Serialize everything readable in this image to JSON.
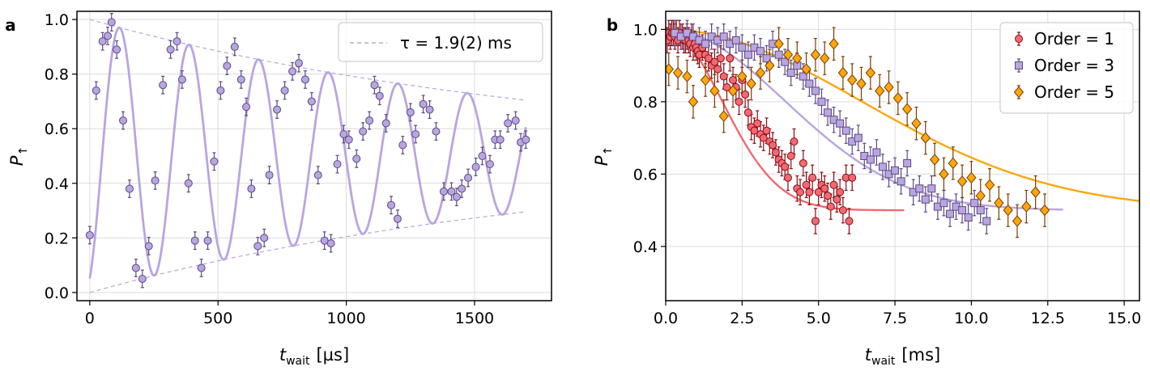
{
  "colors": {
    "purple": "#b9a5df",
    "purple_edge": "#5b4a86",
    "red": "#f06a72",
    "red_edge": "#8b0a14",
    "orange": "#fba70e",
    "orange_edge": "#7a3d00",
    "grid": "#dcdcdc"
  },
  "chart_data": [
    {
      "type": "scatter",
      "panel_label": "a",
      "xlabel": {
        "main": "t",
        "sub": "wait",
        "unit": "[µs]"
      },
      "ylabel": {
        "main": "P",
        "sub": "↑"
      },
      "xlim": [
        -50,
        1800
      ],
      "ylim": [
        -0.03,
        1.03
      ],
      "xticks": [
        0,
        500,
        1000,
        1500
      ],
      "yticks": [
        0.0,
        0.2,
        0.4,
        0.6,
        0.8,
        1.0
      ],
      "xtick_labels": [
        "0",
        "500",
        "1000",
        "1500"
      ],
      "ytick_labels": [
        "0.0",
        "0.2",
        "0.4",
        "0.6",
        "0.8",
        "1.0"
      ],
      "grid": true,
      "legend": {
        "position": "top-right",
        "entries": [
          {
            "label": "τ = 1.9(2) ms",
            "style": "dashed"
          }
        ]
      },
      "fit": {
        "tau_us": 1900,
        "omega_rad_per_us": 0.02315,
        "phase": 3.6,
        "duration_us": 1700
      },
      "series": [
        {
          "name": "data",
          "x": [
            0,
            25,
            50,
            70,
            85,
            105,
            130,
            155,
            180,
            205,
            230,
            255,
            285,
            315,
            340,
            360,
            385,
            410,
            435,
            460,
            485,
            510,
            535,
            565,
            590,
            610,
            630,
            655,
            680,
            700,
            730,
            760,
            790,
            815,
            840,
            865,
            890,
            915,
            940,
            965,
            990,
            1010,
            1040,
            1065,
            1090,
            1110,
            1130,
            1155,
            1175,
            1200,
            1220,
            1250,
            1270,
            1300,
            1325,
            1350,
            1380,
            1410,
            1430,
            1450,
            1475,
            1505,
            1530,
            1560,
            1580,
            1600,
            1630,
            1660,
            1680,
            1700
          ],
          "y": [
            0.21,
            0.74,
            0.92,
            0.94,
            0.99,
            0.89,
            0.63,
            0.38,
            0.09,
            0.05,
            0.17,
            0.41,
            0.76,
            0.89,
            0.92,
            0.78,
            0.4,
            0.19,
            0.09,
            0.19,
            0.48,
            0.74,
            0.83,
            0.9,
            0.78,
            0.68,
            0.38,
            0.17,
            0.2,
            0.43,
            0.67,
            0.74,
            0.81,
            0.84,
            0.78,
            0.7,
            0.43,
            0.19,
            0.18,
            0.47,
            0.58,
            0.56,
            0.49,
            0.59,
            0.63,
            0.76,
            0.72,
            0.62,
            0.32,
            0.27,
            0.54,
            0.66,
            0.58,
            0.69,
            0.67,
            0.59,
            0.37,
            0.37,
            0.35,
            0.38,
            0.42,
            0.46,
            0.5,
            0.47,
            0.56,
            0.56,
            0.62,
            0.63,
            0.55,
            0.56
          ],
          "yerr": 0.032
        }
      ]
    },
    {
      "type": "scatter",
      "panel_label": "b",
      "xlabel": {
        "main": "t",
        "sub": "wait",
        "unit": "[ms]"
      },
      "ylabel": {
        "main": "P",
        "sub": "↑"
      },
      "xlim": [
        0,
        15.5
      ],
      "ylim": [
        0.25,
        1.05
      ],
      "xticks": [
        0,
        2.5,
        5.0,
        7.5,
        10.0,
        12.5,
        15.0
      ],
      "yticks": [
        0.4,
        0.6,
        0.8,
        1.0
      ],
      "xtick_labels": [
        "0.0",
        "2.5",
        "5.0",
        "7.5",
        "10.0",
        "12.5",
        "15.0"
      ],
      "ytick_labels": [
        "0.4",
        "0.6",
        "0.8",
        "1.0"
      ],
      "grid": true,
      "legend": {
        "position": "top-right",
        "entries": [
          {
            "label": "Order = 1",
            "marker": "circle"
          },
          {
            "label": "Order = 3",
            "marker": "square"
          },
          {
            "label": "Order = 5",
            "marker": "diamond"
          }
        ]
      },
      "series": [
        {
          "name": "Order = 1",
          "marker": "circle",
          "fit": {
            "x_end": 7.8,
            "tau": 2.6,
            "n": 2
          },
          "x": [
            0.05,
            0.1,
            0.15,
            0.2,
            0.25,
            0.3,
            0.35,
            0.4,
            0.45,
            0.5,
            0.55,
            0.6,
            0.65,
            0.7,
            0.75,
            0.8,
            0.85,
            0.9,
            0.95,
            1.0,
            1.05,
            1.1,
            1.2,
            1.3,
            1.4,
            1.5,
            1.6,
            1.7,
            1.8,
            1.9,
            2.0,
            2.1,
            2.2,
            2.3,
            2.4,
            2.5,
            2.6,
            2.7,
            2.8,
            2.9,
            3.0,
            3.1,
            3.2,
            3.3,
            3.4,
            3.5,
            3.6,
            3.7,
            3.8,
            3.9,
            4.0,
            4.1,
            4.2,
            4.3,
            4.4,
            4.5,
            4.6,
            4.7,
            4.8,
            4.9,
            5.0,
            5.1,
            5.2,
            5.3,
            5.4,
            5.5,
            5.6,
            5.7,
            5.8,
            5.9,
            6.0,
            6.1
          ],
          "y": [
            0.97,
            0.99,
            0.98,
            0.99,
            0.99,
            0.98,
            0.99,
            0.97,
            0.99,
            0.98,
            0.98,
            0.97,
            0.97,
            0.98,
            0.97,
            0.96,
            0.98,
            0.95,
            0.96,
            0.95,
            0.94,
            0.93,
            0.95,
            0.93,
            0.92,
            0.9,
            0.91,
            0.89,
            0.92,
            0.87,
            0.84,
            0.92,
            0.86,
            0.84,
            0.8,
            0.86,
            0.82,
            0.77,
            0.73,
            0.72,
            0.74,
            0.71,
            0.7,
            0.72,
            0.69,
            0.68,
            0.66,
            0.64,
            0.63,
            0.62,
            0.59,
            0.65,
            0.69,
            0.56,
            0.55,
            0.63,
            0.57,
            0.55,
            0.59,
            0.47,
            0.55,
            0.57,
            0.56,
            0.54,
            0.51,
            0.57,
            0.53,
            0.55,
            0.5,
            0.59,
            0.47,
            0.59
          ],
          "yerr": 0.035
        },
        {
          "name": "Order = 3",
          "marker": "square",
          "fit": {
            "x_end": 13.0,
            "tau": 5.5,
            "n": 2
          },
          "x": [
            0.3,
            0.5,
            0.7,
            0.9,
            1.1,
            1.3,
            1.5,
            1.7,
            1.9,
            2.1,
            2.3,
            2.5,
            2.7,
            2.9,
            3.1,
            3.3,
            3.5,
            3.7,
            3.9,
            4.1,
            4.3,
            4.5,
            4.7,
            4.9,
            5.1,
            5.3,
            5.5,
            5.7,
            5.9,
            6.1,
            6.3,
            6.5,
            6.7,
            6.9,
            7.1,
            7.3,
            7.5,
            7.7,
            7.9,
            8.1,
            8.3,
            8.5,
            8.7,
            8.9,
            9.1,
            9.3,
            9.5,
            9.7,
            9.9,
            10.1,
            10.3,
            10.5
          ],
          "y": [
            0.99,
            0.98,
            0.99,
            0.98,
            0.97,
            0.96,
            0.98,
            0.97,
            0.98,
            0.96,
            0.97,
            0.95,
            0.93,
            0.95,
            0.94,
            0.92,
            0.96,
            0.93,
            0.91,
            0.88,
            0.9,
            0.87,
            0.85,
            0.83,
            0.8,
            0.77,
            0.75,
            0.74,
            0.72,
            0.69,
            0.7,
            0.65,
            0.64,
            0.66,
            0.62,
            0.6,
            0.61,
            0.58,
            0.63,
            0.55,
            0.56,
            0.53,
            0.56,
            0.51,
            0.52,
            0.49,
            0.51,
            0.5,
            0.48,
            0.52,
            0.5,
            0.47
          ],
          "yerr": 0.035
        },
        {
          "name": "Order = 5",
          "marker": "diamond",
          "fit": {
            "x_end": 15.5,
            "tau": 9.0,
            "n": 2
          },
          "x": [
            0.1,
            0.4,
            0.7,
            0.9,
            1.3,
            1.6,
            1.9,
            2.2,
            2.5,
            2.8,
            3.1,
            3.4,
            3.7,
            4.0,
            4.3,
            4.6,
            4.9,
            5.2,
            5.5,
            5.8,
            6.1,
            6.4,
            6.7,
            7.0,
            7.3,
            7.6,
            7.9,
            8.2,
            8.5,
            8.8,
            9.1,
            9.4,
            9.7,
            10.0,
            10.3,
            10.6,
            10.9,
            11.2,
            11.5,
            11.8,
            12.1,
            12.4
          ],
          "y": [
            0.89,
            0.88,
            0.87,
            0.8,
            0.86,
            0.83,
            0.76,
            0.83,
            0.87,
            0.85,
            0.88,
            0.9,
            0.96,
            0.93,
            0.92,
            0.89,
            0.93,
            0.92,
            0.96,
            0.88,
            0.86,
            0.85,
            0.88,
            0.83,
            0.84,
            0.81,
            0.78,
            0.74,
            0.7,
            0.64,
            0.6,
            0.63,
            0.58,
            0.59,
            0.54,
            0.57,
            0.52,
            0.5,
            0.47,
            0.51,
            0.55,
            0.5
          ],
          "yerr": 0.045
        }
      ]
    }
  ]
}
